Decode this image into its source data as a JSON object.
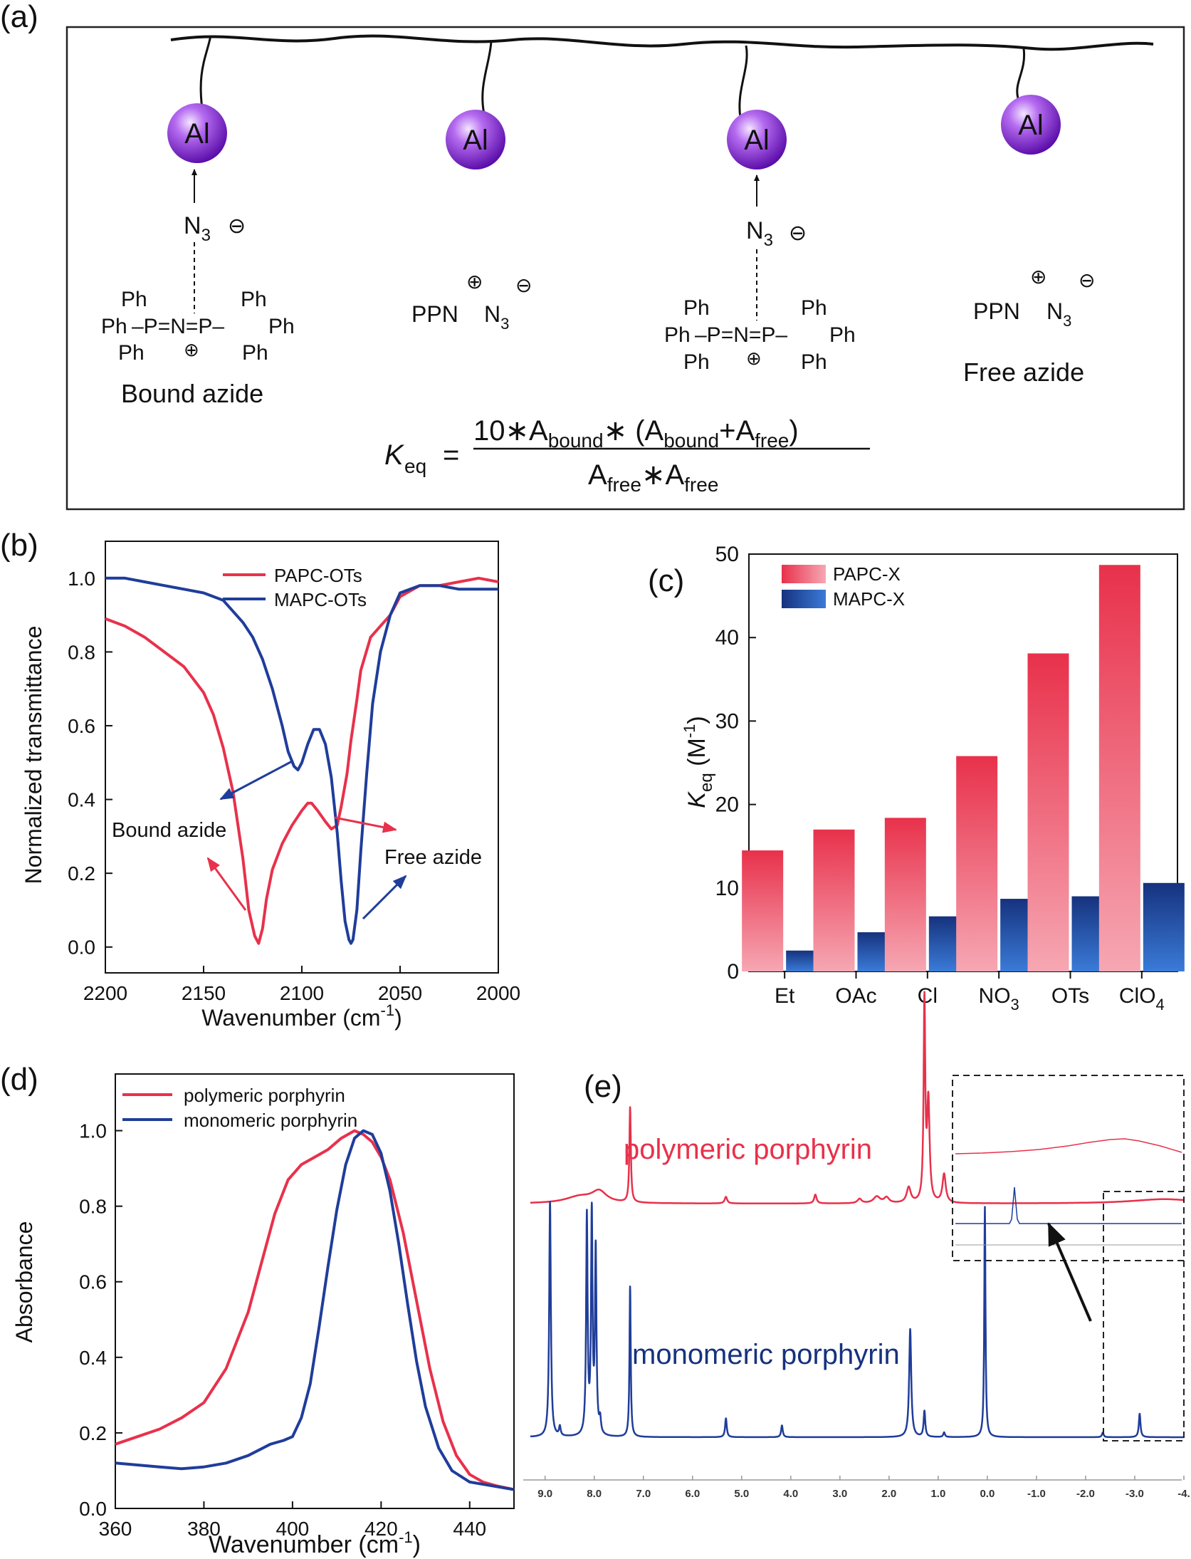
{
  "colors": {
    "red": "#e8314b",
    "blue": "#1f3d9a",
    "dark_blue": "#16327e",
    "purple": "#8a2be2",
    "black": "#111111"
  },
  "panel_a": {
    "label": "(a)",
    "atom": "Al",
    "n3": "N",
    "n3_sub": "3",
    "minus": "⊖",
    "plus": "⊕",
    "ph": "Ph",
    "ppn": "PPN",
    "bound_caption": "Bound azide",
    "free_caption": "Free azide",
    "formula": {
      "k": "K",
      "k_sub": "eq",
      "equals": "=",
      "num_prefix": "10∗A",
      "bound": "bound",
      "star": "∗",
      "open": " (A",
      "plus_a": "+A",
      "free": "free",
      "close": ")",
      "den_a1": "A",
      "den_star_a": "∗A"
    }
  },
  "chart_data": [
    {
      "id": "b",
      "type": "line",
      "panel_label": "(b)",
      "xlabel": "Wavenumber (cm",
      "xlabel_sup": "-1",
      "xlabel_end": ")",
      "ylabel": "Normalized transmittance",
      "xlim": [
        2200,
        2000
      ],
      "ylim": [
        -0.07,
        1.1
      ],
      "xticks": [
        2200,
        2150,
        2100,
        2050,
        2000
      ],
      "yticks": [
        "0.0",
        "0.2",
        "0.4",
        "0.6",
        "0.8",
        "1.0"
      ],
      "legend": [
        "PAPC-OTs",
        "MAPC-OTs"
      ],
      "annotations": [
        "Bound azide",
        "Free azide"
      ],
      "series": [
        {
          "name": "PAPC-OTs",
          "color": "#e8314b",
          "x": [
            2200,
            2190,
            2180,
            2170,
            2160,
            2150,
            2145,
            2140,
            2135,
            2130,
            2127,
            2124,
            2122,
            2120,
            2118,
            2115,
            2110,
            2105,
            2100,
            2097,
            2095,
            2092,
            2088,
            2085,
            2082,
            2080,
            2077,
            2075,
            2072,
            2070,
            2065,
            2060,
            2055,
            2050,
            2040,
            2030,
            2020,
            2010,
            2000
          ],
          "y": [
            0.89,
            0.87,
            0.84,
            0.8,
            0.76,
            0.69,
            0.63,
            0.54,
            0.42,
            0.24,
            0.1,
            0.03,
            0.01,
            0.05,
            0.13,
            0.21,
            0.28,
            0.33,
            0.37,
            0.39,
            0.39,
            0.37,
            0.34,
            0.32,
            0.33,
            0.38,
            0.47,
            0.56,
            0.67,
            0.75,
            0.84,
            0.87,
            0.9,
            0.95,
            0.98,
            0.98,
            0.99,
            1.0,
            0.99
          ]
        },
        {
          "name": "MAPC-OTs",
          "color": "#1f3d9a",
          "x": [
            2200,
            2190,
            2180,
            2170,
            2160,
            2150,
            2140,
            2130,
            2125,
            2120,
            2115,
            2110,
            2107,
            2104,
            2102,
            2100,
            2097,
            2094,
            2091,
            2088,
            2085,
            2082,
            2080,
            2078,
            2076,
            2075,
            2074,
            2072,
            2070,
            2067,
            2064,
            2060,
            2055,
            2050,
            2040,
            2030,
            2020,
            2010,
            2000
          ],
          "y": [
            1.0,
            1.0,
            0.99,
            0.98,
            0.97,
            0.96,
            0.94,
            0.88,
            0.84,
            0.78,
            0.7,
            0.6,
            0.53,
            0.49,
            0.48,
            0.5,
            0.55,
            0.59,
            0.59,
            0.55,
            0.46,
            0.31,
            0.18,
            0.07,
            0.02,
            0.01,
            0.02,
            0.1,
            0.26,
            0.47,
            0.66,
            0.8,
            0.9,
            0.96,
            0.98,
            0.98,
            0.97,
            0.97,
            0.97
          ]
        }
      ]
    },
    {
      "id": "c",
      "type": "bar",
      "panel_label": "(c)",
      "ylabel": "K",
      "ylabel_sub": "eq",
      "ylabel_unit": " (M",
      "ylabel_sup": "-1",
      "ylabel_end": ")",
      "ylim": [
        0,
        50
      ],
      "yticks": [
        "0",
        "10",
        "20",
        "30",
        "40",
        "50"
      ],
      "categories": [
        "Et",
        "OAc",
        "Cl",
        "NO",
        "OTs",
        "ClO"
      ],
      "category_subs": [
        "",
        "",
        "",
        "3",
        "",
        "4"
      ],
      "series": [
        {
          "name": "PAPC-X",
          "color": "#e8314b",
          "values": [
            14.5,
            17.0,
            18.4,
            25.8,
            38.1,
            48.7
          ]
        },
        {
          "name": "MAPC-X",
          "color": "#1f3d9a",
          "values": [
            2.5,
            4.7,
            6.6,
            8.7,
            9.0,
            10.6
          ]
        }
      ]
    },
    {
      "id": "d",
      "type": "line",
      "panel_label": "(d)",
      "xlabel": "Wavenumber (cm",
      "xlabel_sup": "-1",
      "xlabel_end": ")",
      "ylabel": "Absorbance",
      "xlim": [
        360,
        450
      ],
      "ylim": [
        0,
        1.15
      ],
      "xticks": [
        "360",
        "380",
        "400",
        "420",
        "440"
      ],
      "yticks": [
        "0.0",
        "0.2",
        "0.4",
        "0.6",
        "0.8",
        "1.0"
      ],
      "legend": [
        "polymeric porphyrin",
        "monomeric porphyrin"
      ],
      "series": [
        {
          "name": "polymeric porphyrin",
          "color": "#e8314b",
          "x": [
            360,
            365,
            370,
            375,
            380,
            385,
            390,
            393,
            396,
            399,
            402,
            405,
            408,
            411,
            414,
            416,
            418,
            420,
            422,
            425,
            428,
            431,
            434,
            437,
            440,
            443,
            446,
            450
          ],
          "y": [
            0.17,
            0.19,
            0.21,
            0.24,
            0.28,
            0.37,
            0.52,
            0.65,
            0.78,
            0.87,
            0.91,
            0.93,
            0.95,
            0.98,
            1.0,
            0.99,
            0.97,
            0.93,
            0.87,
            0.73,
            0.55,
            0.37,
            0.23,
            0.14,
            0.09,
            0.07,
            0.06,
            0.05
          ]
        },
        {
          "name": "monomeric porphyrin",
          "color": "#1f3d9a",
          "x": [
            360,
            365,
            370,
            375,
            380,
            385,
            390,
            395,
            398,
            400,
            402,
            404,
            406,
            408,
            410,
            412,
            414,
            416,
            418,
            420,
            422,
            424,
            426,
            428,
            430,
            433,
            436,
            440,
            445,
            450
          ],
          "y": [
            0.12,
            0.115,
            0.11,
            0.105,
            0.11,
            0.12,
            0.14,
            0.17,
            0.18,
            0.19,
            0.24,
            0.33,
            0.48,
            0.64,
            0.79,
            0.91,
            0.98,
            1.0,
            0.99,
            0.94,
            0.84,
            0.7,
            0.54,
            0.39,
            0.27,
            0.16,
            0.1,
            0.07,
            0.06,
            0.05
          ]
        }
      ]
    },
    {
      "id": "e",
      "type": "line",
      "panel_label": "(e)",
      "xlim": [
        9.3,
        -4.0
      ],
      "xticks": [
        "9.0",
        "8.0",
        "7.0",
        "6.0",
        "5.0",
        "4.0",
        "3.0",
        "2.0",
        "1.0",
        "0.0",
        "-1.0",
        "-2.0",
        "-3.0",
        "-4."
      ],
      "series": [
        {
          "name": "polymeric porphyrin",
          "color": "#e8314b",
          "peaks": [
            {
              "x": 8.3,
              "h": 0.03,
              "w": 0.35
            },
            {
              "x": 7.9,
              "h": 0.05,
              "w": 0.18
            },
            {
              "x": 7.27,
              "h": 0.43,
              "w": 0.018
            },
            {
              "x": 5.32,
              "h": 0.03,
              "w": 0.03
            },
            {
              "x": 3.5,
              "h": 0.04,
              "w": 0.03
            },
            {
              "x": 2.6,
              "h": 0.02,
              "w": 0.05
            },
            {
              "x": 2.25,
              "h": 0.03,
              "w": 0.08
            },
            {
              "x": 2.05,
              "h": 0.025,
              "w": 0.06
            },
            {
              "x": 1.6,
              "h": 0.07,
              "w": 0.05
            },
            {
              "x": 1.28,
              "h": 0.9,
              "w": 0.02
            },
            {
              "x": 1.2,
              "h": 0.45,
              "w": 0.03
            },
            {
              "x": 0.88,
              "h": 0.13,
              "w": 0.04
            },
            {
              "x": -3.6,
              "h": 0.02,
              "w": 0.8
            }
          ]
        },
        {
          "name": "monomeric porphyrin",
          "color": "#1f3d9a",
          "peaks": [
            {
              "x": 8.9,
              "h": 1.0,
              "w": 0.02
            },
            {
              "x": 8.7,
              "h": 0.04,
              "w": 0.02
            },
            {
              "x": 8.15,
              "h": 0.93,
              "w": 0.018
            },
            {
              "x": 8.05,
              "h": 0.93,
              "w": 0.018
            },
            {
              "x": 7.97,
              "h": 0.78,
              "w": 0.018
            },
            {
              "x": 7.88,
              "h": 0.06,
              "w": 0.02
            },
            {
              "x": 7.27,
              "h": 0.64,
              "w": 0.015
            },
            {
              "x": 5.32,
              "h": 0.08,
              "w": 0.02
            },
            {
              "x": 4.18,
              "h": 0.05,
              "w": 0.02
            },
            {
              "x": 1.57,
              "h": 0.46,
              "w": 0.025
            },
            {
              "x": 1.28,
              "h": 0.11,
              "w": 0.02
            },
            {
              "x": 0.88,
              "h": 0.02,
              "w": 0.02
            },
            {
              "x": 0.05,
              "h": 0.98,
              "w": 0.015
            },
            {
              "x": -2.35,
              "h": 0.02,
              "w": 0.02
            },
            {
              "x": -3.1,
              "h": 0.1,
              "w": 0.02
            }
          ]
        }
      ],
      "labels": [
        "polymeric porphyrin",
        "monomeric porphyrin"
      ]
    }
  ]
}
